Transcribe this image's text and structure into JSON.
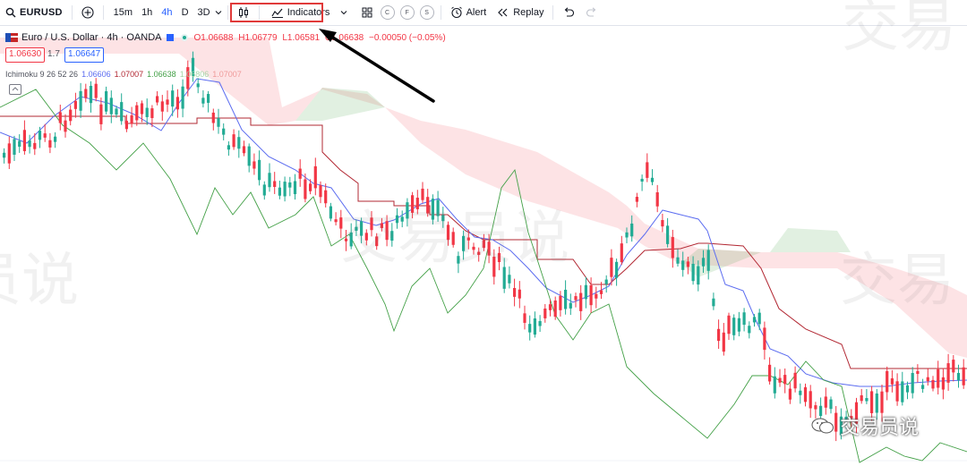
{
  "toolbar": {
    "symbol": "EURUSD",
    "timeframes": [
      "15m",
      "1h",
      "4h",
      "D",
      "3D"
    ],
    "active_timeframe": "4h",
    "indicators_label": "Indicators",
    "alert_label": "Alert",
    "replay_label": "Replay",
    "layout_circles": [
      "C",
      "F",
      "S"
    ]
  },
  "legend": {
    "title": "Euro / U.S. Dollar · 4h · OANDA",
    "open": "O1.06688",
    "high": "H1.06779",
    "low": "L1.06581",
    "close": "C1.06638",
    "change": "−0.00050 (−0.05%)",
    "bid": "1.06630",
    "spread": "1.7",
    "ask": "1.06647"
  },
  "ichimoku": {
    "label": "Ichimoku 9 26 52 26",
    "v1": "1.06606",
    "v2": "1.07007",
    "v3": "1.06638",
    "v4": "1.06806",
    "v5": "1.07007"
  },
  "watermarks": [
    "交易",
    "员说",
    "交易员说",
    "交易"
  ],
  "wechat_label": "交易员说",
  "colors": {
    "up": "#22ab94",
    "down": "#f23645",
    "tenkan": "#5b6cf0",
    "kijun": "#b22833",
    "chikou": "#43a047",
    "cloud_bear": "rgba(242,54,69,0.14)",
    "cloud_bull": "rgba(67,160,71,0.16)",
    "accent": "#2962ff"
  }
}
